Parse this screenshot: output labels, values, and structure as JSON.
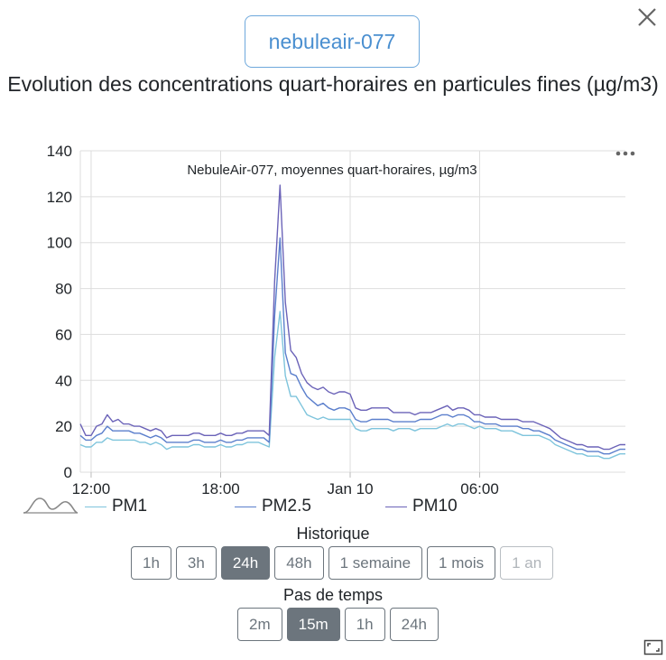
{
  "sensor": {
    "name": "nebuleair-077"
  },
  "page": {
    "title": "Evolution des concentrations quart-horaires en particules fines (µg/m3)"
  },
  "chart_data": {
    "type": "line",
    "title": "NebuleAir-077, moyennes quart-horaires, µg/m3",
    "ylim": [
      0,
      140
    ],
    "yticks": [
      "0",
      "20",
      "40",
      "60",
      "80",
      "100",
      "120",
      "140"
    ],
    "xticks": [
      "12:00",
      "18:00",
      "Jan 10",
      "06:00"
    ],
    "xtick_positions": [
      2,
      26,
      50,
      74
    ],
    "grid": true,
    "legend_position": "bottom-left",
    "series": [
      {
        "name": "PM1",
        "color": "#7ec4dc",
        "values": [
          12,
          11,
          11,
          13,
          13,
          15,
          14,
          14,
          14,
          14,
          14,
          13,
          13,
          12,
          13,
          12,
          10,
          11,
          11,
          11,
          11,
          12,
          12,
          11,
          11,
          11,
          12,
          11,
          11,
          12,
          12,
          13,
          13,
          13,
          12,
          11,
          50,
          70,
          42,
          33,
          33,
          29,
          25,
          24,
          23,
          24,
          23,
          23,
          23,
          23,
          23,
          19,
          18,
          18,
          19,
          19,
          19,
          19,
          18,
          19,
          19,
          19,
          18,
          19,
          19,
          19,
          19,
          20,
          21,
          20,
          21,
          21,
          20,
          19,
          20,
          19,
          19,
          19,
          18,
          18,
          18,
          17,
          16,
          16,
          16,
          16,
          15,
          14,
          12,
          11,
          10,
          9,
          8,
          8,
          7,
          7,
          7,
          6,
          6,
          7,
          8,
          8
        ]
      },
      {
        "name": "PM2.5",
        "color": "#5b7fcc",
        "values": [
          16,
          14,
          14,
          16,
          17,
          20,
          18,
          18,
          18,
          18,
          17,
          17,
          16,
          15,
          16,
          15,
          13,
          13,
          13,
          13,
          13,
          14,
          14,
          13,
          13,
          13,
          14,
          13,
          13,
          14,
          14,
          15,
          15,
          15,
          15,
          13,
          68,
          102,
          52,
          43,
          42,
          37,
          33,
          31,
          29,
          30,
          28,
          27,
          28,
          28,
          27,
          23,
          22,
          22,
          23,
          23,
          23,
          23,
          22,
          22,
          22,
          22,
          22,
          23,
          23,
          23,
          24,
          25,
          25,
          24,
          25,
          25,
          24,
          22,
          22,
          21,
          21,
          21,
          20,
          20,
          20,
          20,
          19,
          19,
          18,
          18,
          17,
          16,
          14,
          13,
          12,
          11,
          10,
          10,
          9,
          9,
          9,
          8,
          8,
          9,
          10,
          10
        ]
      },
      {
        "name": "PM10",
        "color": "#6b63b8",
        "values": [
          21,
          16,
          16,
          20,
          21,
          25,
          22,
          23,
          21,
          21,
          20,
          20,
          19,
          18,
          19,
          18,
          15,
          16,
          16,
          16,
          16,
          17,
          17,
          16,
          16,
          16,
          17,
          16,
          16,
          17,
          17,
          18,
          18,
          18,
          18,
          16,
          83,
          125,
          74,
          53,
          50,
          43,
          39,
          37,
          36,
          37,
          35,
          34,
          35,
          35,
          34,
          28,
          27,
          27,
          28,
          28,
          28,
          28,
          26,
          26,
          26,
          26,
          25,
          26,
          26,
          26,
          27,
          28,
          29,
          27,
          28,
          28,
          27,
          25,
          25,
          24,
          24,
          24,
          23,
          23,
          23,
          23,
          22,
          22,
          22,
          21,
          20,
          19,
          17,
          15,
          14,
          13,
          12,
          12,
          11,
          11,
          11,
          10,
          10,
          11,
          12,
          12
        ]
      }
    ]
  },
  "legend_toggle": {
    "icon": "distribution-icon"
  },
  "historique": {
    "label": "Historique",
    "options": [
      {
        "label": "1h",
        "state": "normal"
      },
      {
        "label": "3h",
        "state": "normal"
      },
      {
        "label": "24h",
        "state": "active"
      },
      {
        "label": "48h",
        "state": "normal"
      },
      {
        "label": "1 semaine",
        "state": "normal"
      },
      {
        "label": "1 mois",
        "state": "normal"
      },
      {
        "label": "1 an",
        "state": "disabled"
      }
    ]
  },
  "pas_de_temps": {
    "label": "Pas de temps",
    "options": [
      {
        "label": "2m",
        "state": "normal"
      },
      {
        "label": "15m",
        "state": "active"
      },
      {
        "label": "1h",
        "state": "normal"
      },
      {
        "label": "24h",
        "state": "normal"
      }
    ]
  }
}
